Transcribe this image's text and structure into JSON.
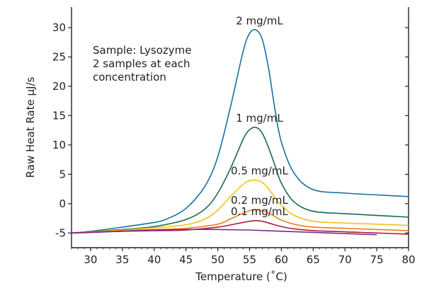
{
  "chart_data": {
    "type": "line",
    "title": "",
    "xlabel": "Temperature (˚C)",
    "ylabel": "Raw Heat Rate μJ/s",
    "xlim": [
      27,
      80
    ],
    "ylim": [
      -7.5,
      33.5
    ],
    "xticks": [
      30,
      35,
      40,
      45,
      50,
      55,
      60,
      65,
      70,
      75,
      80
    ],
    "yticks": [
      -5,
      0,
      5,
      10,
      15,
      20,
      25,
      30
    ],
    "grid": false,
    "annotation": [
      "Sample: Lysozyme",
      "2 samples at each",
      "concentration"
    ],
    "series": [
      {
        "name": "2 mg/mL",
        "color": "#1a6fa3",
        "x": [
          27,
          30,
          35,
          40,
          42,
          45,
          48,
          50,
          52,
          54,
          55,
          56,
          57,
          58,
          59,
          60,
          62,
          65,
          70,
          75,
          80
        ],
        "y": [
          -5.0,
          -4.7,
          -4.0,
          -3.2,
          -2.6,
          -0.8,
          3.0,
          8.0,
          16.5,
          26.0,
          29.0,
          29.6,
          28.0,
          23.0,
          16.0,
          10.5,
          5.2,
          2.4,
          1.8,
          1.5,
          1.2
        ]
      },
      {
        "name": "1 mg/mL",
        "color": "#1a6b4a",
        "x": [
          27,
          30,
          35,
          40,
          45,
          48,
          50,
          52,
          54,
          55,
          56,
          57,
          58,
          59,
          60,
          62,
          65,
          70,
          75,
          80
        ],
        "y": [
          -5.0,
          -4.8,
          -4.4,
          -3.9,
          -2.7,
          -0.9,
          1.8,
          6.0,
          11.0,
          12.6,
          13.0,
          12.0,
          9.5,
          6.5,
          3.5,
          0.3,
          -1.3,
          -1.7,
          -2.0,
          -2.3
        ]
      },
      {
        "name": "0.5 mg/mL",
        "color": "#f2c21b",
        "x": [
          27,
          30,
          35,
          40,
          45,
          48,
          50,
          52,
          54,
          55,
          56,
          57,
          58,
          59,
          60,
          62,
          65,
          70,
          75,
          80
        ],
        "y": [
          -5.0,
          -4.8,
          -4.5,
          -4.1,
          -3.6,
          -2.6,
          -1.1,
          1.2,
          3.3,
          3.9,
          4.0,
          3.6,
          2.5,
          1.0,
          -0.3,
          -2.0,
          -3.0,
          -3.3,
          -3.5,
          -3.7
        ]
      },
      {
        "name": "0.2 mg/mL",
        "color": "#ef7d1a",
        "x": [
          27,
          30,
          35,
          40,
          45,
          50,
          52,
          54,
          55,
          56,
          57,
          58,
          59,
          60,
          62,
          65,
          70,
          75,
          80
        ],
        "y": [
          -5.0,
          -4.8,
          -4.6,
          -4.4,
          -4.2,
          -3.5,
          -2.6,
          -1.6,
          -1.2,
          -1.0,
          -1.2,
          -1.6,
          -2.2,
          -2.8,
          -3.5,
          -4.0,
          -4.2,
          -4.4,
          -4.6
        ]
      },
      {
        "name": "0.1 mg/mL",
        "color": "#b01a3e",
        "x": [
          27,
          30,
          35,
          40,
          45,
          50,
          53,
          55,
          56,
          57,
          58,
          60,
          62,
          65,
          70,
          75,
          80
        ],
        "y": [
          -5.0,
          -4.9,
          -4.7,
          -4.6,
          -4.5,
          -4.0,
          -3.4,
          -3.0,
          -2.9,
          -3.0,
          -3.3,
          -3.9,
          -4.3,
          -4.6,
          -4.8,
          -5.0,
          -5.2
        ]
      },
      {
        "name": "",
        "color": "#7b2a8c",
        "x": [
          27,
          30,
          35,
          40,
          45,
          50,
          55,
          60,
          65,
          70,
          75
        ],
        "y": [
          -5.0,
          -4.9,
          -4.7,
          -4.5,
          -4.4,
          -4.4,
          -4.5,
          -4.7,
          -4.9,
          -5.1,
          -5.3
        ]
      }
    ]
  }
}
